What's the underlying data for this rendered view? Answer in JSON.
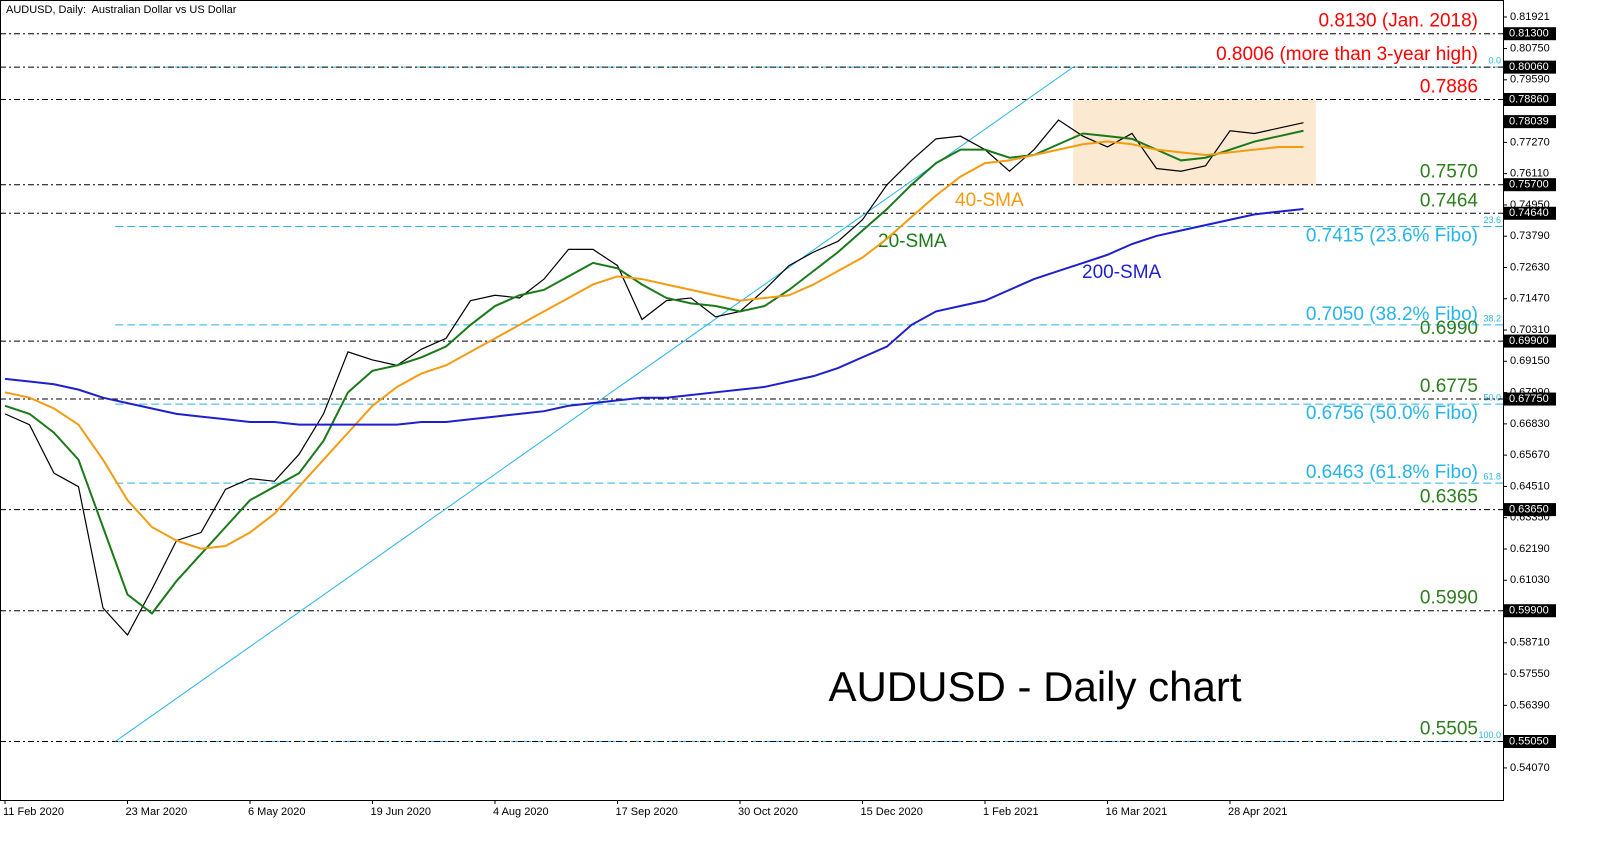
{
  "chart_data": {
    "type": "line",
    "title": "AUDUSD - Daily chart",
    "subtitle": "AUDUSD, Daily:  Australian Dollar vs US Dollar",
    "categories": [
      "11 Feb 2020",
      null,
      null,
      null,
      null,
      "23 Mar 2020",
      null,
      null,
      null,
      null,
      "6 May 2020",
      null,
      null,
      null,
      null,
      "19 Jun 2020",
      null,
      null,
      null,
      null,
      "4 Aug 2020",
      null,
      null,
      null,
      null,
      "17 Sep 2020",
      null,
      null,
      null,
      null,
      "30 Oct 2020",
      null,
      null,
      null,
      null,
      "15 Dec 2020",
      null,
      null,
      null,
      null,
      "1 Feb 2021",
      null,
      null,
      null,
      null,
      "16 Mar 2021",
      null,
      null,
      null,
      null,
      "28 Apr 2021",
      null,
      null,
      null
    ],
    "series": [
      {
        "color": "#000000",
        "values": [
          0.672,
          0.668,
          0.65,
          0.645,
          0.6,
          0.59,
          0.607,
          0.625,
          0.628,
          0.644,
          0.648,
          0.647,
          0.657,
          0.672,
          0.695,
          0.692,
          0.69,
          0.696,
          0.7,
          0.714,
          0.716,
          0.715,
          0.722,
          0.733,
          0.733,
          0.727,
          0.707,
          0.714,
          0.715,
          0.708,
          0.71,
          0.718,
          0.727,
          0.732,
          0.736,
          0.744,
          0.757,
          0.766,
          0.774,
          0.775,
          0.77,
          0.762,
          0.77,
          0.781,
          0.775,
          0.771,
          0.776,
          0.763,
          0.762,
          0.764,
          0.777,
          0.776,
          0.778,
          0.78
        ]
      },
      {
        "name": "20-SMA",
        "color": "#1a7a1a",
        "values": [
          0.675,
          0.672,
          0.665,
          0.655,
          0.63,
          0.605,
          0.598,
          0.61,
          0.62,
          0.63,
          0.64,
          0.645,
          0.65,
          0.662,
          0.68,
          0.688,
          0.69,
          0.693,
          0.697,
          0.705,
          0.712,
          0.716,
          0.718,
          0.723,
          0.728,
          0.726,
          0.72,
          0.715,
          0.713,
          0.712,
          0.71,
          0.712,
          0.718,
          0.725,
          0.732,
          0.74,
          0.748,
          0.757,
          0.765,
          0.77,
          0.77,
          0.767,
          0.768,
          0.772,
          0.776,
          0.775,
          0.774,
          0.77,
          0.766,
          0.767,
          0.77,
          0.773,
          0.775,
          0.777
        ]
      },
      {
        "name": "40-SMA",
        "color": "#f39c12",
        "values": [
          0.68,
          0.678,
          0.674,
          0.668,
          0.655,
          0.64,
          0.63,
          0.625,
          0.622,
          0.623,
          0.628,
          0.635,
          0.645,
          0.655,
          0.665,
          0.675,
          0.682,
          0.687,
          0.69,
          0.695,
          0.7,
          0.705,
          0.71,
          0.715,
          0.72,
          0.723,
          0.722,
          0.72,
          0.718,
          0.716,
          0.714,
          0.715,
          0.716,
          0.72,
          0.725,
          0.73,
          0.737,
          0.745,
          0.753,
          0.76,
          0.765,
          0.766,
          0.768,
          0.77,
          0.772,
          0.773,
          0.772,
          0.77,
          0.769,
          0.768,
          0.769,
          0.77,
          0.771,
          0.771
        ]
      },
      {
        "name": "200-SMA",
        "color": "#1f1fcc",
        "values": [
          0.685,
          0.684,
          0.683,
          0.681,
          0.678,
          0.676,
          0.674,
          0.672,
          0.671,
          0.67,
          0.669,
          0.669,
          0.668,
          0.668,
          0.668,
          0.668,
          0.668,
          0.669,
          0.669,
          0.67,
          0.671,
          0.672,
          0.673,
          0.675,
          0.676,
          0.677,
          0.678,
          0.678,
          0.679,
          0.68,
          0.681,
          0.682,
          0.684,
          0.686,
          0.689,
          0.693,
          0.697,
          0.705,
          0.71,
          0.712,
          0.714,
          0.718,
          0.722,
          0.725,
          0.728,
          0.731,
          0.735,
          0.738,
          0.74,
          0.742,
          0.744,
          0.746,
          0.747,
          0.748
        ]
      }
    ],
    "ylim": [
      0.5288,
      0.8255
    ],
    "yticks": [
      0.81921,
      {
        "value": 0.8075,
        "label": "0.80750"
      },
      {
        "value": 0.7959,
        "label": "0.79590"
      },
      {
        "value": 0.7727,
        "label": "0.77270"
      },
      {
        "value": 0.7611,
        "label": "0.76110"
      },
      {
        "value": 0.7495,
        "label": "0.74950"
      },
      {
        "value": 0.7379,
        "label": "0.73790"
      },
      {
        "value": 0.7263,
        "label": "0.72630"
      },
      {
        "value": 0.7147,
        "label": "0.71470"
      },
      {
        "value": 0.7031,
        "label": "0.70310"
      },
      {
        "value": 0.6915,
        "label": "0.69150"
      },
      {
        "value": 0.6799,
        "label": "0.67990"
      },
      {
        "value": 0.6683,
        "label": "0.66830"
      },
      {
        "value": 0.6567,
        "label": "0.65670"
      },
      {
        "value": 0.6451,
        "label": "0.64510"
      },
      {
        "value": 0.6335,
        "label": "0.63350"
      },
      {
        "value": 0.6219,
        "label": "0.62190"
      },
      {
        "value": 0.6103,
        "label": "0.61030"
      },
      {
        "value": 0.5987,
        "label": "0.59870"
      },
      {
        "value": 0.5871,
        "label": "0.58710"
      },
      {
        "value": 0.5755,
        "label": "0.57550"
      },
      {
        "value": 0.5639,
        "label": "0.56390"
      },
      {
        "value": 0.5407,
        "label": "0.54070"
      }
    ],
    "price_tags": [
      {
        "value": 0.813,
        "label": "0.81300"
      },
      {
        "value": 0.8006,
        "label": "0.80060"
      },
      {
        "value": 0.7886,
        "label": "0.78860"
      },
      {
        "value": 0.78039,
        "label": "0.78039"
      },
      {
        "value": 0.757,
        "label": "0.75700"
      },
      {
        "value": 0.7464,
        "label": "0.74640"
      },
      {
        "value": 0.699,
        "label": "0.69900"
      },
      {
        "value": 0.6775,
        "label": "0.67750"
      },
      {
        "value": 0.6365,
        "label": "0.63650"
      },
      {
        "value": 0.599,
        "label": "0.59900"
      },
      {
        "value": 0.5505,
        "label": "0.55050"
      }
    ],
    "levels": [
      {
        "value": 0.813,
        "label": "0.8130 (Jan. 2018)",
        "color": "#ff0000"
      },
      {
        "value": 0.8006,
        "label": "0.8006 (more than 3-year high)",
        "color": "#ff0000"
      },
      {
        "value": 0.7886,
        "label": "0.7886",
        "color": "#ff0000"
      },
      {
        "value": 0.757,
        "label": "0.7570",
        "color": "#2e7d1e"
      },
      {
        "value": 0.7464,
        "label": "0.7464",
        "color": "#2e7d1e"
      },
      {
        "value": 0.699,
        "label": "0.6990",
        "color": "#2e7d1e"
      },
      {
        "value": 0.6775,
        "label": "0.6775",
        "color": "#2e7d1e"
      },
      {
        "value": 0.6365,
        "label": "0.6365",
        "color": "#2e7d1e"
      },
      {
        "value": 0.599,
        "label": "0.5990",
        "color": "#2e7d1e"
      },
      {
        "value": 0.5505,
        "label": "0.5505",
        "color": "#2e7d1e"
      }
    ],
    "fibo": {
      "color": "#27b4e6",
      "levels": [
        {
          "value": 0.8006,
          "ratio": "0.0"
        },
        {
          "value": 0.7415,
          "ratio": "23.6",
          "label": "0.7415 (23.6% Fibo)"
        },
        {
          "value": 0.705,
          "ratio": "38.2",
          "label": "0.7050 (38.2% Fibo)"
        },
        {
          "value": 0.6756,
          "ratio": "50.0",
          "label": "0.6756 (50.0% Fibo)"
        },
        {
          "value": 0.6463,
          "ratio": "61.8",
          "label": "0.6463 (61.8% Fibo)"
        },
        {
          "value": 0.5505,
          "ratio": "100.0"
        }
      ]
    },
    "trendline": {
      "x": [
        4.5,
        43.6
      ],
      "values": [
        0.5505,
        0.8006
      ]
    },
    "range_box": {
      "x": [
        43.6,
        53.5
      ],
      "values": [
        0.757,
        0.7886
      ],
      "color": "#fbe3c6"
    }
  }
}
